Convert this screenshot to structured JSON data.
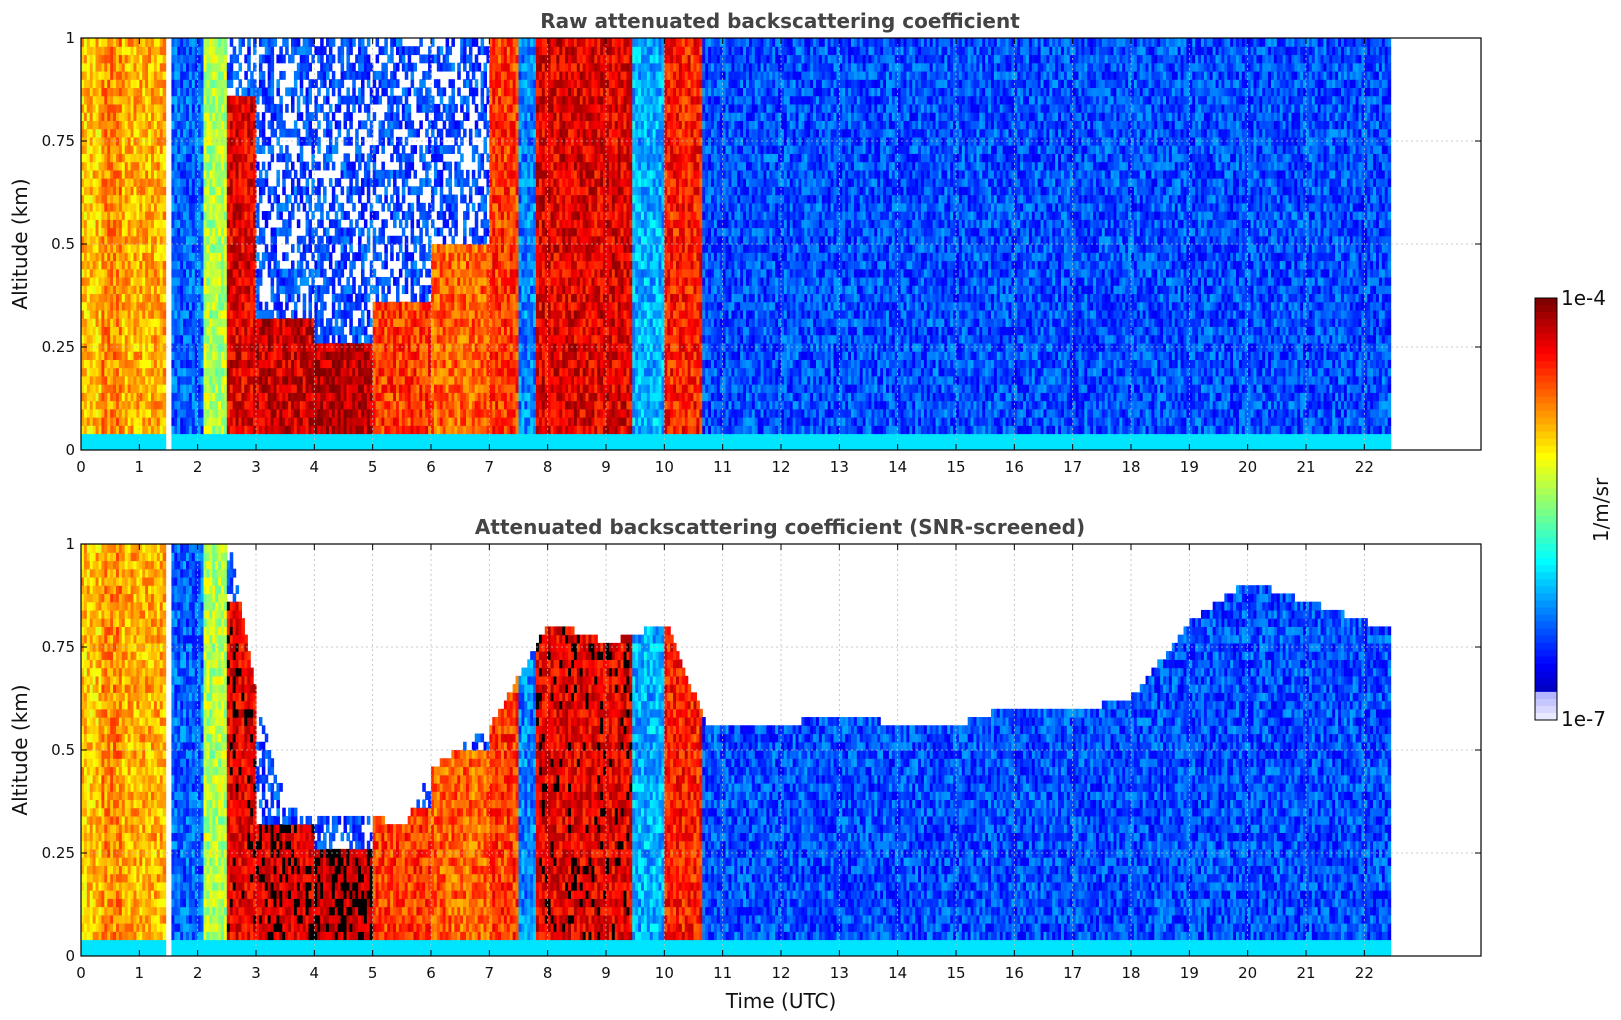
{
  "chart_data": [
    {
      "type": "heatmap",
      "title": "Raw attenuated backscattering coefficient",
      "xlabel": "",
      "ylabel": "Altitude (km)",
      "xlim": [
        0,
        24
      ],
      "ylim": [
        0,
        1
      ],
      "x_ticks": [
        "0",
        "1",
        "2",
        "3",
        "4",
        "5",
        "6",
        "7",
        "8",
        "9",
        "10",
        "11",
        "12",
        "13",
        "14",
        "15",
        "16",
        "17",
        "18",
        "19",
        "20",
        "21",
        "22"
      ],
      "y_ticks": [
        "0",
        "0.25",
        "0.5",
        "0.75",
        "1"
      ],
      "grid": true,
      "data_extent_hours": [
        0,
        22.45
      ],
      "screening": "none",
      "profile_segments": [
        {
          "t0": 0.0,
          "t1": 0.35,
          "level": 0.68,
          "top": 1.0,
          "note_level": 0.0
        },
        {
          "t0": 0.35,
          "t1": 0.7,
          "level": 0.74,
          "top": 1.0
        },
        {
          "t0": 0.7,
          "t1": 1.45,
          "level": 0.7,
          "top": 1.0
        },
        {
          "t0": 1.55,
          "t1": 2.1,
          "level": 0.22,
          "top": 1.0
        },
        {
          "t0": 2.1,
          "t1": 2.5,
          "level": 0.55,
          "top": 1.0
        },
        {
          "t0": 2.5,
          "t1": 3.0,
          "level": 0.9,
          "top": 0.85
        },
        {
          "t0": 3.0,
          "t1": 4.0,
          "level": 0.92,
          "top": 0.32
        },
        {
          "t0": 4.0,
          "t1": 5.0,
          "level": 0.95,
          "top": 0.25
        },
        {
          "t0": 5.0,
          "t1": 6.0,
          "level": 0.82,
          "top": 0.36
        },
        {
          "t0": 6.0,
          "t1": 7.0,
          "level": 0.78,
          "top": 0.5
        },
        {
          "t0": 7.0,
          "t1": 7.5,
          "level": 0.82,
          "top": 1.0
        },
        {
          "t0": 7.5,
          "t1": 7.8,
          "level": 0.25,
          "top": 1.0
        },
        {
          "t0": 7.8,
          "t1": 9.45,
          "level": 0.9,
          "top": 1.0
        },
        {
          "t0": 9.45,
          "t1": 10.0,
          "level": 0.3,
          "top": 1.0
        },
        {
          "t0": 10.0,
          "t1": 10.65,
          "level": 0.85,
          "top": 1.0
        },
        {
          "t0": 10.65,
          "t1": 22.45,
          "level": 0.2,
          "top": 1.0
        }
      ]
    },
    {
      "type": "heatmap",
      "title": "Attenuated backscattering coefficient (SNR-screened)",
      "xlabel": "Time (UTC)",
      "ylabel": "Altitude (km)",
      "xlim": [
        0,
        24
      ],
      "ylim": [
        0,
        1
      ],
      "x_ticks": [
        "0",
        "1",
        "2",
        "3",
        "4",
        "5",
        "6",
        "7",
        "8",
        "9",
        "10",
        "11",
        "12",
        "13",
        "14",
        "15",
        "16",
        "17",
        "18",
        "19",
        "20",
        "21",
        "22"
      ],
      "y_ticks": [
        "0",
        "0.25",
        "0.5",
        "0.75",
        "1"
      ],
      "grid": true,
      "data_extent_hours": [
        0,
        22.45
      ],
      "screening": "SNR",
      "screened_top_km": [
        [
          0,
          1.0
        ],
        [
          1.5,
          1.0
        ],
        [
          2.5,
          1.0
        ],
        [
          3.0,
          0.6
        ],
        [
          3.5,
          0.35
        ],
        [
          4.0,
          0.32
        ],
        [
          5.0,
          0.33
        ],
        [
          5.5,
          0.3
        ],
        [
          6.0,
          0.45
        ],
        [
          7.0,
          0.55
        ],
        [
          8.0,
          0.8
        ],
        [
          9.0,
          0.75
        ],
        [
          10.0,
          0.8
        ],
        [
          10.7,
          0.55
        ],
        [
          12.0,
          0.55
        ],
        [
          13.0,
          0.58
        ],
        [
          14.0,
          0.55
        ],
        [
          15.0,
          0.55
        ],
        [
          16.0,
          0.6
        ],
        [
          17.0,
          0.58
        ],
        [
          18.0,
          0.62
        ],
        [
          19.0,
          0.8
        ],
        [
          20.0,
          0.9
        ],
        [
          21.0,
          0.85
        ],
        [
          22.45,
          0.78
        ]
      ]
    }
  ],
  "colorbar": {
    "label": "1/m/sr",
    "max_label": "1e-4",
    "min_label": "1e-7",
    "colormap": "jet"
  }
}
